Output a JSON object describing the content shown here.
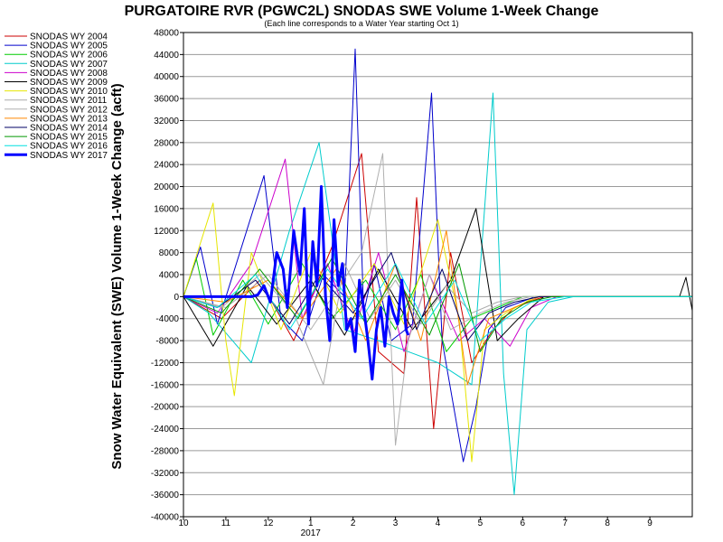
{
  "chart_data": {
    "type": "line",
    "title": "PURGATOIRE RVR (PGWC2L) SNODAS SWE Volume 1-Week Change",
    "subtitle": "(Each line corresponds to a Water Year starting Oct 1)",
    "xlabel": "",
    "ylabel": "Snow Water Equivalent (SWE) Volume 1-Week Change (acft)",
    "ylim": [
      -40000,
      48000
    ],
    "y_ticks": [
      48000,
      44000,
      40000,
      36000,
      32000,
      28000,
      24000,
      20000,
      16000,
      12000,
      8000,
      4000,
      0,
      -4000,
      -8000,
      -12000,
      -16000,
      -20000,
      -24000,
      -28000,
      -32000,
      -36000,
      -40000
    ],
    "xlim": [
      0,
      12
    ],
    "x_ticks": [
      {
        "pos": 0,
        "label": "10"
      },
      {
        "pos": 1,
        "label": "11"
      },
      {
        "pos": 2,
        "label": "12"
      },
      {
        "pos": 3,
        "label": "1"
      },
      {
        "pos": 4,
        "label": "2"
      },
      {
        "pos": 5,
        "label": "3"
      },
      {
        "pos": 6,
        "label": "4"
      },
      {
        "pos": 7,
        "label": "5"
      },
      {
        "pos": 8,
        "label": "6"
      },
      {
        "pos": 9,
        "label": "7"
      },
      {
        "pos": 10,
        "label": "8"
      },
      {
        "pos": 11,
        "label": "9"
      }
    ],
    "x_year_label": {
      "pos": 3,
      "label": "2017"
    },
    "grid": true,
    "legend_position": "left",
    "series": [
      {
        "name": "SNODAS WY 2004",
        "color": "#cc0000",
        "width": 1,
        "points": [
          [
            0,
            0
          ],
          [
            0.9,
            -4000
          ],
          [
            1.8,
            3000
          ],
          [
            2.6,
            -8000
          ],
          [
            3.5,
            9000
          ],
          [
            4.2,
            26000
          ],
          [
            4.6,
            -10000
          ],
          [
            5.2,
            -14000
          ],
          [
            5.5,
            18000
          ],
          [
            5.9,
            -24000
          ],
          [
            6.3,
            8000
          ],
          [
            6.8,
            -12000
          ],
          [
            7.3,
            -6000
          ],
          [
            7.8,
            -2000
          ],
          [
            8.5,
            0
          ],
          [
            12,
            0
          ]
        ]
      },
      {
        "name": "SNODAS WY 2005",
        "color": "#0000cc",
        "width": 1,
        "points": [
          [
            0,
            0
          ],
          [
            0.4,
            9000
          ],
          [
            0.8,
            -5000
          ],
          [
            1.9,
            22000
          ],
          [
            2.3,
            -4000
          ],
          [
            2.8,
            -8000
          ],
          [
            3.3,
            4000
          ],
          [
            3.8,
            0
          ],
          [
            4.05,
            45000
          ],
          [
            4.25,
            -3000
          ],
          [
            4.5,
            6000
          ],
          [
            4.9,
            -8000
          ],
          [
            5.4,
            -5000
          ],
          [
            5.85,
            37000
          ],
          [
            6.1,
            -8000
          ],
          [
            6.6,
            -30000
          ],
          [
            6.9,
            -20000
          ],
          [
            7.2,
            -6000
          ],
          [
            7.6,
            -2000
          ],
          [
            8.3,
            0
          ],
          [
            12,
            0
          ]
        ]
      },
      {
        "name": "SNODAS WY 2006",
        "color": "#00cc00",
        "width": 1,
        "points": [
          [
            0,
            0
          ],
          [
            0.3,
            7000
          ],
          [
            0.7,
            -7000
          ],
          [
            1.4,
            3000
          ],
          [
            2.0,
            -5000
          ],
          [
            2.8,
            6000
          ],
          [
            3.5,
            -4000
          ],
          [
            4.3,
            3000
          ],
          [
            5.0,
            -6000
          ],
          [
            5.6,
            4000
          ],
          [
            6.2,
            -10000
          ],
          [
            6.8,
            -4000
          ],
          [
            7.4,
            -2000
          ],
          [
            8.0,
            0
          ],
          [
            12,
            0
          ]
        ]
      },
      {
        "name": "SNODAS WY 2007",
        "color": "#00cccc",
        "width": 1,
        "points": [
          [
            0,
            0
          ],
          [
            0.6,
            -3000
          ],
          [
            1.6,
            -12000
          ],
          [
            2.5,
            12000
          ],
          [
            3.2,
            28000
          ],
          [
            3.8,
            -6000
          ],
          [
            4.6,
            -8000
          ],
          [
            5.3,
            -10000
          ],
          [
            6.0,
            -12000
          ],
          [
            6.8,
            -16000
          ],
          [
            7.3,
            37000
          ],
          [
            7.55,
            -14000
          ],
          [
            7.8,
            -36000
          ],
          [
            8.1,
            -6000
          ],
          [
            8.6,
            -1000
          ],
          [
            9.2,
            0
          ],
          [
            12,
            0
          ]
        ]
      },
      {
        "name": "SNODAS WY 2008",
        "color": "#cc00cc",
        "width": 1,
        "points": [
          [
            0,
            0
          ],
          [
            0.8,
            -3000
          ],
          [
            1.6,
            6000
          ],
          [
            2.4,
            25000
          ],
          [
            2.8,
            -4000
          ],
          [
            3.4,
            6000
          ],
          [
            4.0,
            -7000
          ],
          [
            4.6,
            8000
          ],
          [
            5.2,
            -10000
          ],
          [
            5.8,
            4000
          ],
          [
            6.5,
            -8000
          ],
          [
            7.1,
            -4000
          ],
          [
            7.7,
            -9000
          ],
          [
            8.2,
            -2000
          ],
          [
            8.8,
            0
          ],
          [
            12,
            0
          ]
        ]
      },
      {
        "name": "SNODAS WY 2009",
        "color": "#000000",
        "width": 1,
        "points": [
          [
            0,
            0
          ],
          [
            0.7,
            -9000
          ],
          [
            1.5,
            2000
          ],
          [
            2.2,
            -5000
          ],
          [
            3.0,
            3000
          ],
          [
            3.8,
            -7000
          ],
          [
            4.6,
            5000
          ],
          [
            5.4,
            -6000
          ],
          [
            6.3,
            3000
          ],
          [
            6.9,
            16000
          ],
          [
            7.4,
            -8000
          ],
          [
            7.9,
            -4000
          ],
          [
            8.5,
            0
          ],
          [
            11.7,
            0
          ],
          [
            11.85,
            3500
          ],
          [
            12,
            -2500
          ]
        ]
      },
      {
        "name": "SNODAS WY 2010",
        "color": "#e6e600",
        "width": 1,
        "points": [
          [
            0,
            0
          ],
          [
            0.7,
            17000
          ],
          [
            1.0,
            -8000
          ],
          [
            1.2,
            -18000
          ],
          [
            1.6,
            8000
          ],
          [
            2.3,
            -6000
          ],
          [
            3.0,
            8000
          ],
          [
            3.7,
            -3000
          ],
          [
            4.5,
            6000
          ],
          [
            5.2,
            -5000
          ],
          [
            6.0,
            14000
          ],
          [
            6.5,
            -4000
          ],
          [
            6.8,
            -30000
          ],
          [
            7.1,
            -6000
          ],
          [
            7.6,
            -3000
          ],
          [
            8.3,
            0
          ],
          [
            12,
            0
          ]
        ]
      },
      {
        "name": "SNODAS WY 2011",
        "color": "#aaaaaa",
        "width": 1,
        "points": [
          [
            0,
            0
          ],
          [
            0.9,
            -2000
          ],
          [
            1.8,
            4000
          ],
          [
            2.6,
            -3000
          ],
          [
            3.3,
            -16000
          ],
          [
            3.8,
            6000
          ],
          [
            4.4,
            -4000
          ],
          [
            5.0,
            3000
          ],
          [
            5.6,
            -5000
          ],
          [
            6.2,
            2000
          ],
          [
            6.8,
            -3000
          ],
          [
            7.4,
            -1000
          ],
          [
            8.0,
            0
          ],
          [
            12,
            0
          ]
        ]
      },
      {
        "name": "SNODAS WY 2012",
        "color": "#b0b0b0",
        "width": 1,
        "points": [
          [
            0,
            0
          ],
          [
            1.0,
            -2000
          ],
          [
            2.0,
            4000
          ],
          [
            3.0,
            -6000
          ],
          [
            4.2,
            8000
          ],
          [
            4.7,
            26000
          ],
          [
            5.0,
            -27000
          ],
          [
            5.3,
            -8000
          ],
          [
            5.8,
            4000
          ],
          [
            6.3,
            -6000
          ],
          [
            7.0,
            -3000
          ],
          [
            7.6,
            -1000
          ],
          [
            8.2,
            0
          ],
          [
            12,
            0
          ]
        ]
      },
      {
        "name": "SNODAS WY 2013",
        "color": "#ff8800",
        "width": 1,
        "points": [
          [
            0,
            0
          ],
          [
            1.0,
            -1000
          ],
          [
            2.0,
            3000
          ],
          [
            2.8,
            -4000
          ],
          [
            3.6,
            5000
          ],
          [
            4.3,
            -8000
          ],
          [
            5.0,
            6000
          ],
          [
            5.6,
            -8000
          ],
          [
            6.2,
            12000
          ],
          [
            6.7,
            -16000
          ],
          [
            7.2,
            -4000
          ],
          [
            7.8,
            -2000
          ],
          [
            8.4,
            0
          ],
          [
            12,
            0
          ]
        ]
      },
      {
        "name": "SNODAS WY 2014",
        "color": "#000066",
        "width": 1,
        "points": [
          [
            0,
            0
          ],
          [
            0.8,
            -2000
          ],
          [
            1.7,
            3000
          ],
          [
            2.5,
            -5000
          ],
          [
            3.2,
            4000
          ],
          [
            4.0,
            -3000
          ],
          [
            4.9,
            8000
          ],
          [
            5.5,
            -6000
          ],
          [
            6.1,
            5000
          ],
          [
            6.7,
            -8000
          ],
          [
            7.2,
            -3000
          ],
          [
            7.8,
            -1000
          ],
          [
            8.4,
            0
          ],
          [
            12,
            0
          ]
        ]
      },
      {
        "name": "SNODAS WY 2015",
        "color": "#009900",
        "width": 1,
        "points": [
          [
            0,
            0
          ],
          [
            0.9,
            -3000
          ],
          [
            1.8,
            5000
          ],
          [
            2.7,
            -4000
          ],
          [
            3.5,
            7000
          ],
          [
            4.3,
            -5000
          ],
          [
            5.0,
            4000
          ],
          [
            5.8,
            -7000
          ],
          [
            6.5,
            6000
          ],
          [
            7.0,
            -10000
          ],
          [
            7.5,
            -4000
          ],
          [
            8.1,
            -1000
          ],
          [
            8.7,
            0
          ],
          [
            12,
            0
          ]
        ]
      },
      {
        "name": "SNODAS WY 2016",
        "color": "#00e0e0",
        "width": 1,
        "points": [
          [
            0,
            0
          ],
          [
            0.8,
            -2000
          ],
          [
            1.7,
            4000
          ],
          [
            2.5,
            -6000
          ],
          [
            3.4,
            5000
          ],
          [
            4.2,
            -4000
          ],
          [
            5.0,
            6000
          ],
          [
            5.7,
            -5000
          ],
          [
            6.4,
            3000
          ],
          [
            7.0,
            -8000
          ],
          [
            7.6,
            -4000
          ],
          [
            8.2,
            -1000
          ],
          [
            9.0,
            0
          ],
          [
            12,
            0
          ]
        ]
      },
      {
        "name": "SNODAS WY 2017",
        "color": "#0000ff",
        "width": 3,
        "points": [
          [
            0,
            0
          ],
          [
            1.6,
            0
          ],
          [
            1.75,
            300
          ],
          [
            1.9,
            2000
          ],
          [
            2.05,
            -1000
          ],
          [
            2.2,
            8000
          ],
          [
            2.35,
            5000
          ],
          [
            2.45,
            -2000
          ],
          [
            2.6,
            12000
          ],
          [
            2.75,
            4000
          ],
          [
            2.85,
            16000
          ],
          [
            2.95,
            -5000
          ],
          [
            3.05,
            10000
          ],
          [
            3.15,
            2000
          ],
          [
            3.25,
            20000
          ],
          [
            3.35,
            0
          ],
          [
            3.45,
            -8000
          ],
          [
            3.55,
            14000
          ],
          [
            3.65,
            2000
          ],
          [
            3.75,
            6000
          ],
          [
            3.85,
            -6000
          ],
          [
            3.95,
            -4000
          ],
          [
            4.05,
            -10000
          ],
          [
            4.15,
            3000
          ],
          [
            4.25,
            -2000
          ],
          [
            4.35,
            -8000
          ],
          [
            4.45,
            -15000
          ],
          [
            4.55,
            -6000
          ],
          [
            4.65,
            -2000
          ],
          [
            4.75,
            -9000
          ],
          [
            4.85,
            0
          ],
          [
            4.95,
            -3000
          ],
          [
            5.05,
            -5000
          ],
          [
            5.15,
            3000
          ],
          [
            5.25,
            -6000
          ],
          [
            5.3,
            -7000
          ]
        ]
      }
    ]
  }
}
